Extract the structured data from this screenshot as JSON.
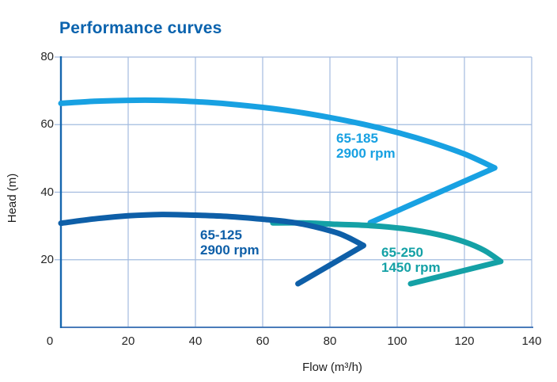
{
  "title": "Performance curves",
  "colors": {
    "title_text": "#0a63ae",
    "grid": "#a3bbdf",
    "y_axis": "#1566ae",
    "x_axis": "#4a7cba",
    "tick_text": "#262626"
  },
  "chart_data": {
    "type": "line",
    "title": "Performance curves",
    "xlabel": "Flow (m³/h)",
    "ylabel": "Head (m)",
    "xlim": [
      0,
      140
    ],
    "ylim": [
      0,
      80
    ],
    "x_ticks": [
      0,
      20,
      40,
      60,
      80,
      100,
      120,
      140
    ],
    "y_ticks": [
      0,
      20,
      40,
      60,
      80
    ],
    "grid": true,
    "legend_position": "labels-on-plot",
    "series": [
      {
        "name": "65-185",
        "rpm": "2900 rpm",
        "color": "#18a1e2",
        "points_flow_head": [
          [
            0,
            66.3
          ],
          [
            10,
            66.9
          ],
          [
            20,
            67.2
          ],
          [
            30,
            67.2
          ],
          [
            40,
            66.8
          ],
          [
            50,
            66.1
          ],
          [
            60,
            65.1
          ],
          [
            70,
            63.8
          ],
          [
            80,
            62.1
          ],
          [
            90,
            60.1
          ],
          [
            100,
            57.7
          ],
          [
            110,
            54.8
          ],
          [
            120,
            51.3
          ],
          [
            129,
            47.2
          ]
        ],
        "return_line_to": [
          92,
          31
        ]
      },
      {
        "name": "65-125",
        "rpm": "2900 rpm",
        "color": "#0e5fa8",
        "points_flow_head": [
          [
            0,
            30.8
          ],
          [
            10,
            32.1
          ],
          [
            20,
            33.0
          ],
          [
            30,
            33.4
          ],
          [
            40,
            33.2
          ],
          [
            50,
            32.8
          ],
          [
            60,
            32.0
          ],
          [
            70,
            30.9
          ],
          [
            80,
            28.6
          ],
          [
            85,
            26.8
          ],
          [
            90,
            24.2
          ]
        ],
        "return_line_to": [
          70.5,
          12.9
        ]
      },
      {
        "name": "65-250",
        "rpm": "1450 rpm",
        "color": "#14a1a6",
        "points_flow_head": [
          [
            63,
            30.9
          ],
          [
            72,
            30.9
          ],
          [
            82,
            30.5
          ],
          [
            92,
            30.1
          ],
          [
            102,
            29.2
          ],
          [
            112,
            27.5
          ],
          [
            120,
            25.3
          ],
          [
            126,
            22.7
          ],
          [
            130.8,
            19.5
          ]
        ],
        "return_line_to": [
          104,
          12.9
        ]
      }
    ]
  }
}
